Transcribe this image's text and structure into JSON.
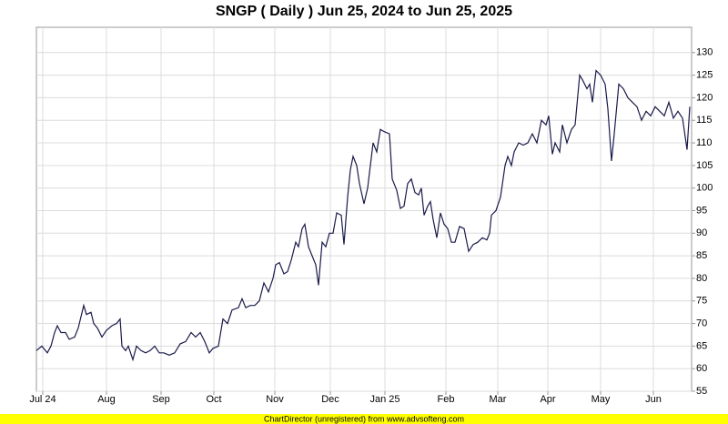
{
  "chart_data": {
    "type": "line",
    "title": "SNGP ( Daily ) Jun 25, 2024 to Jun 25, 2025",
    "footer": "ChartDirector (unregistered) from www.advsofteng.com",
    "xlim": [
      0,
      720
    ],
    "xticks": [
      {
        "value": 7,
        "label": "Jul 24"
      },
      {
        "value": 77,
        "label": "Aug"
      },
      {
        "value": 137,
        "label": "Sep"
      },
      {
        "value": 195,
        "label": "Oct"
      },
      {
        "value": 262,
        "label": "Nov"
      },
      {
        "value": 323,
        "label": "Dec"
      },
      {
        "value": 383,
        "label": "Jan 25"
      },
      {
        "value": 450,
        "label": "Feb"
      },
      {
        "value": 507,
        "label": "Mar"
      },
      {
        "value": 562,
        "label": "Apr"
      },
      {
        "value": 620,
        "label": "May"
      },
      {
        "value": 678,
        "label": "Jun"
      }
    ],
    "ylim": [
      55,
      135.6
    ],
    "yticks": [
      55,
      60,
      65,
      70,
      75,
      80,
      85,
      90,
      95,
      100,
      105,
      110,
      115,
      120,
      125,
      130
    ],
    "grid": true,
    "series": [
      {
        "name": "SNGP",
        "color": "#1a1a4a",
        "x": [
          0,
          6,
          12,
          16,
          20,
          23,
          27,
          32,
          36,
          42,
          46,
          52,
          55,
          60,
          63,
          67,
          72,
          77,
          83,
          88,
          92,
          94,
          98,
          101,
          106,
          110,
          115,
          120,
          125,
          130,
          135,
          140,
          146,
          152,
          158,
          164,
          170,
          175,
          180,
          185,
          190,
          194,
          200,
          205,
          210,
          215,
          222,
          226,
          230,
          235,
          240,
          245,
          250,
          255,
          260,
          263,
          267,
          272,
          276,
          280,
          285,
          288,
          292,
          295,
          299,
          303,
          307,
          310,
          314,
          318,
          322,
          326,
          330,
          335,
          338,
          342,
          345,
          348,
          352,
          355,
          360,
          364,
          370,
          374,
          378,
          382,
          388,
          391,
          396,
          400,
          404,
          408,
          412,
          416,
          420,
          423,
          426,
          430,
          433,
          436,
          440,
          444,
          448,
          452,
          456,
          460,
          465,
          470,
          475,
          480,
          485,
          490,
          495,
          498,
          500,
          505,
          510,
          515,
          518,
          522,
          525,
          530,
          535,
          540,
          545,
          550,
          555,
          560,
          563,
          567,
          570,
          575,
          578,
          583,
          588,
          592,
          597,
          600,
          605,
          608,
          611,
          615,
          620,
          625,
          628,
          632,
          635,
          640,
          645,
          650,
          655,
          660,
          665,
          670,
          675,
          680,
          685,
          690,
          695,
          700,
          705,
          710,
          715,
          718
        ],
        "values": [
          64,
          65,
          63.5,
          65,
          68,
          69.5,
          68,
          68,
          66.5,
          67,
          69,
          74,
          72,
          72.5,
          70,
          69,
          67,
          68.5,
          69.5,
          70,
          71,
          65,
          64,
          65,
          62,
          65,
          64,
          63.5,
          64,
          65,
          63.5,
          63.5,
          63,
          63.5,
          65.5,
          66,
          68,
          67,
          68,
          66,
          63.5,
          64.5,
          65,
          71,
          70,
          73,
          73.5,
          75.5,
          73.5,
          74,
          74,
          75,
          79,
          77,
          80,
          83,
          83.5,
          81,
          81.5,
          84,
          88,
          87,
          91,
          92,
          87,
          85,
          83,
          78.5,
          88,
          87,
          90,
          90,
          94.5,
          94,
          87.5,
          98,
          104,
          107,
          105,
          101,
          96.5,
          100,
          110,
          108,
          113,
          112.5,
          112,
          102,
          99.5,
          95.5,
          96,
          101,
          102,
          99,
          98.5,
          100,
          94,
          96,
          97,
          93,
          89,
          94.5,
          92,
          91,
          88,
          88,
          91.5,
          91,
          86,
          87.5,
          88,
          89,
          88.5,
          90,
          94,
          95,
          98,
          105,
          107,
          105,
          108,
          110,
          109.5,
          110,
          112,
          110,
          115,
          114,
          116,
          107.5,
          110,
          108,
          114,
          110,
          113,
          114,
          125,
          124,
          122,
          123,
          119,
          126,
          125,
          123,
          117.5,
          106,
          112,
          123,
          122,
          120,
          119,
          118,
          115,
          117,
          116,
          118,
          117,
          116,
          119,
          115.5,
          117,
          115.5,
          108.5,
          118
        ]
      }
    ]
  }
}
